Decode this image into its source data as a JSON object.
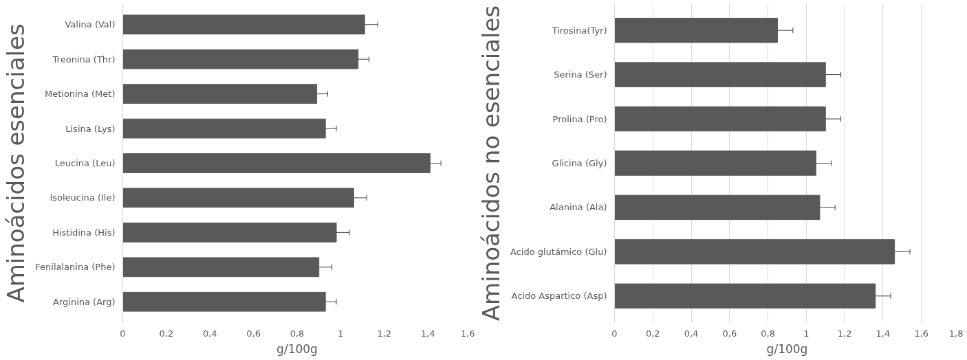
{
  "chart_data": [
    {
      "type": "bar",
      "orientation": "horizontal",
      "ylabel": "Aminoácidos esenciales",
      "xlabel": "g/100g",
      "categories": [
        "Valina (Val)",
        "Treonina (Thr)",
        "Metionina (Met)",
        "Lisina (Lys)",
        "Leucina (Leu)",
        "Isoleucina (Ile)",
        "Histidina (His)",
        "Fenilalanina (Phe)",
        "Arginina (Arg)"
      ],
      "values": [
        1.11,
        1.08,
        0.89,
        0.93,
        1.41,
        1.06,
        0.98,
        0.9,
        0.93
      ],
      "errors": [
        0.06,
        0.05,
        0.05,
        0.05,
        0.05,
        0.06,
        0.06,
        0.06,
        0.05
      ],
      "color": "#595959",
      "xlim": [
        0,
        1.6
      ],
      "xticks": [
        0,
        {
          "value": 0.2,
          "label": "0,2"
        },
        {
          "value": 0.4,
          "label": "0,4"
        },
        {
          "value": 0.6,
          "label": "0,6"
        },
        {
          "value": 0.8,
          "label": "0,8"
        },
        1,
        {
          "value": 1.2,
          "label": "1,2"
        },
        {
          "value": 1.4,
          "label": "1,4"
        },
        {
          "value": 1.6,
          "label": "1,6"
        }
      ],
      "grid": false
    },
    {
      "type": "bar",
      "orientation": "horizontal",
      "ylabel": "Aminoácidos no esenciales",
      "xlabel": "g/100g",
      "categories": [
        "Tirosina(Tyr)",
        "Serina (Ser)",
        "Prolina (Pro)",
        "Glicina (Gly)",
        "Alanina (Ala)",
        "Acido glutámico (Glu)",
        "Acido Aspartico (Asp)"
      ],
      "values": [
        0.85,
        1.1,
        1.1,
        1.05,
        1.07,
        1.46,
        1.36
      ],
      "errors": [
        0.08,
        0.08,
        0.08,
        0.08,
        0.08,
        0.08,
        0.08
      ],
      "color": "#595959",
      "xlim": [
        0,
        1.8
      ],
      "xticks": [
        0,
        {
          "value": 0.2,
          "label": "0,2"
        },
        {
          "value": 0.4,
          "label": "0,4"
        },
        {
          "value": 0.6,
          "label": "0,6"
        },
        {
          "value": 0.8,
          "label": "0,8"
        },
        1,
        {
          "value": 1.2,
          "label": "1,2"
        },
        {
          "value": 1.4,
          "label": "1,4"
        },
        {
          "value": 1.6,
          "label": "1,6"
        },
        {
          "value": 1.8,
          "label": "1,8"
        }
      ],
      "grid": "x"
    }
  ]
}
